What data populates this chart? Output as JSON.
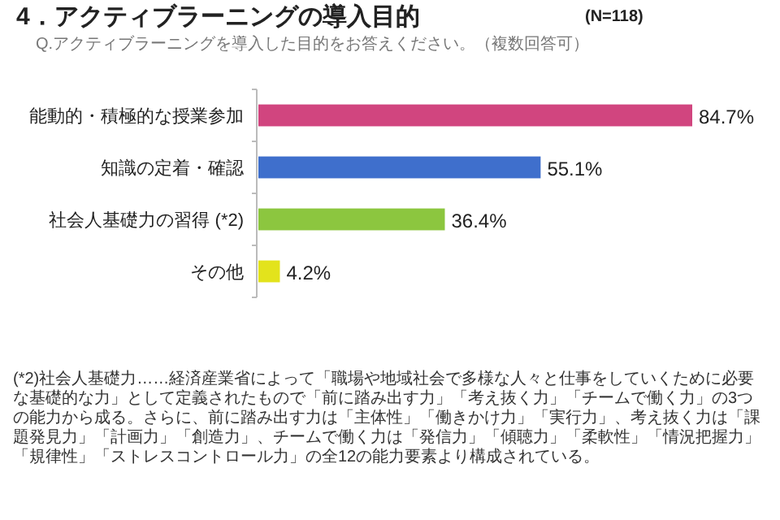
{
  "chart_data": {
    "type": "bar",
    "orientation": "horizontal",
    "title": "4．アクティブラーニングの導入目的",
    "subtitle": "Q.アクティブラーニングを導入した目的をお答えください。（複数回答可）",
    "categories": [
      "能動的・積極的な授業参加",
      "知識の定着・確認",
      "社会人基礎力の習得 (*2)",
      "その他"
    ],
    "values": [
      84.7,
      55.1,
      36.4,
      4.2
    ],
    "colors": [
      "#d1457f",
      "#3f6fcc",
      "#8cc63f",
      "#e3e31c"
    ],
    "value_labels": [
      "84.7%",
      "55.1%",
      "36.4%",
      "4.2%"
    ],
    "annotations": [
      "(N=118)",
      "(*2)社会人基礎力……経済産業省によって「職場や地域社会で多様な人々と仕事をしていくために必要な基礎的な力」として定義されたもので「前に踏み出す力」「考え抜く力」「チームで働く力」の3つの能力から成る。さらに、前に踏み出す力は「主体性」「働きかけ力」「実行力」、考え抜く力は「課題発見力」「計画力」「創造力」、チームで働く力は「発信力」「傾聴力」「柔軟性」「情況把握力」「規律性」「ストレスコントロール力」の全12の能力要素より構成されている。"
    ]
  }
}
